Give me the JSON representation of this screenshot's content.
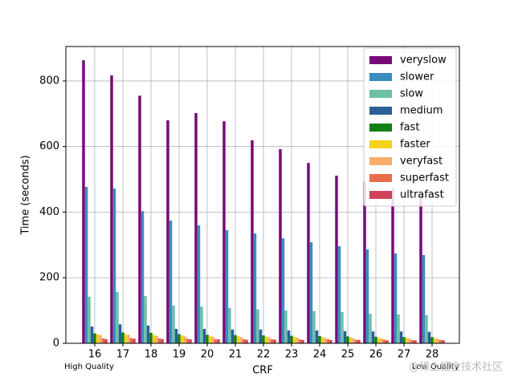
{
  "chart_data": {
    "type": "bar",
    "xlabel": "CRF",
    "ylabel": "Time (seconds)",
    "annotations": [
      "High Quality",
      "Low Quality"
    ],
    "watermark": "@稀土掘金技术社区",
    "categories": [
      "16",
      "17",
      "18",
      "19",
      "20",
      "21",
      "22",
      "23",
      "24",
      "25",
      "26",
      "27",
      "28"
    ],
    "ylim": [
      0,
      905
    ],
    "yticks": [
      0,
      200,
      400,
      600,
      800
    ],
    "grid": true,
    "legend": "upper right",
    "series": [
      {
        "name": "veryslow",
        "color": "#780a78",
        "values": [
          863,
          817,
          755,
          680,
          702,
          677,
          619,
          592,
          550,
          511,
          494,
          472,
          452
        ]
      },
      {
        "name": "slower",
        "color": "#3a8bc0",
        "values": [
          477,
          472,
          403,
          374,
          360,
          345,
          335,
          320,
          308,
          296,
          286,
          274,
          269
        ]
      },
      {
        "name": "slow",
        "color": "#6dc0a6",
        "values": [
          142,
          156,
          144,
          115,
          112,
          108,
          103,
          100,
          98,
          95,
          90,
          88,
          86
        ]
      },
      {
        "name": "medium",
        "color": "#2a5f97",
        "values": [
          51,
          58,
          54,
          44,
          44,
          42,
          42,
          39,
          39,
          37,
          36,
          36,
          35
        ]
      },
      {
        "name": "fast",
        "color": "#118011",
        "values": [
          30,
          33,
          32,
          28,
          26,
          25,
          24,
          23,
          22,
          21,
          20,
          19,
          19
        ]
      },
      {
        "name": "faster",
        "color": "#f5d21a",
        "values": [
          27,
          28,
          26,
          24,
          23,
          22,
          21,
          20,
          19,
          18,
          17,
          17,
          16
        ]
      },
      {
        "name": "veryfast",
        "color": "#f7ae6a",
        "values": [
          25,
          26,
          23,
          21,
          20,
          19,
          18,
          17,
          16,
          15,
          15,
          14,
          14
        ]
      },
      {
        "name": "superfast",
        "color": "#e86d4a",
        "values": [
          15,
          16,
          15,
          14,
          13,
          13,
          12,
          12,
          12,
          11,
          11,
          10,
          10
        ]
      },
      {
        "name": "ultrafast",
        "color": "#d0435a",
        "values": [
          13,
          14,
          13,
          12,
          12,
          11,
          11,
          10,
          10,
          10,
          9,
          9,
          9
        ]
      }
    ]
  }
}
